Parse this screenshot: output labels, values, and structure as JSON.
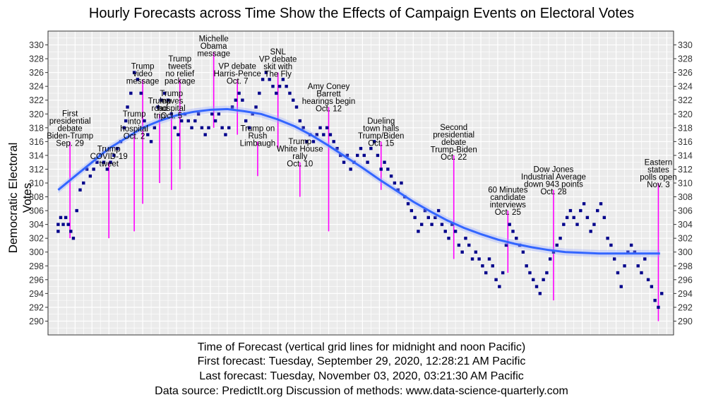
{
  "chart_data": {
    "type": "scatter",
    "title": "Hourly Forecasts across Time Show the Effects of Campaign Events on Electoral Votes",
    "ylabel": "Democratic Electoral Votes",
    "xlabel_lines": [
      "Time of Forecast (vertical grid lines for midnight and noon Pacific)",
      "First forecast: Tuesday, September 29, 2020, 12:28:21 AM Pacific",
      "Last forecast: Tuesday, November 03, 2020, 03:21:30 AM Pacific",
      "Data source: PredictIt.org  Discussion of methods: www.data-science-quarterly.com"
    ],
    "x_unit": "days since first forecast",
    "x_range": [
      -0.6,
      36.4
    ],
    "ylim": [
      288,
      332
    ],
    "y_ticks": [
      290,
      292,
      294,
      296,
      298,
      300,
      302,
      304,
      306,
      308,
      310,
      312,
      314,
      316,
      318,
      320,
      322,
      324,
      326,
      328,
      330
    ],
    "grid": true,
    "series_color": "#00008b",
    "smooth_color": "#3366ff",
    "event_color": "#ff00ff",
    "points": [
      [
        0.0,
        303
      ],
      [
        0.0,
        304
      ],
      [
        0.15,
        305
      ],
      [
        0.3,
        304
      ],
      [
        0.45,
        305
      ],
      [
        0.6,
        304
      ],
      [
        0.75,
        303
      ],
      [
        0.9,
        302
      ],
      [
        1.1,
        306
      ],
      [
        1.3,
        309
      ],
      [
        1.5,
        310
      ],
      [
        1.7,
        312
      ],
      [
        1.9,
        311
      ],
      [
        2.1,
        312
      ],
      [
        2.3,
        313
      ],
      [
        2.5,
        314
      ],
      [
        2.7,
        313
      ],
      [
        2.9,
        312
      ],
      [
        3.1,
        313
      ],
      [
        3.3,
        314
      ],
      [
        3.5,
        315
      ],
      [
        3.7,
        316
      ],
      [
        3.9,
        318
      ],
      [
        4.0,
        319
      ],
      [
        4.1,
        321
      ],
      [
        4.3,
        323
      ],
      [
        4.5,
        326
      ],
      [
        4.7,
        325
      ],
      [
        4.9,
        323
      ],
      [
        5.1,
        319
      ],
      [
        5.3,
        317
      ],
      [
        5.5,
        316
      ],
      [
        5.7,
        318
      ],
      [
        5.9,
        321
      ],
      [
        6.1,
        322
      ],
      [
        6.3,
        323
      ],
      [
        6.5,
        322
      ],
      [
        6.7,
        320
      ],
      [
        6.9,
        318
      ],
      [
        7.1,
        317
      ],
      [
        7.3,
        319
      ],
      [
        7.5,
        320
      ],
      [
        7.7,
        319
      ],
      [
        7.9,
        318
      ],
      [
        8.1,
        319
      ],
      [
        8.3,
        320
      ],
      [
        8.5,
        318
      ],
      [
        8.7,
        317
      ],
      [
        8.9,
        318
      ],
      [
        9.1,
        320
      ],
      [
        9.3,
        319
      ],
      [
        9.5,
        320
      ],
      [
        9.7,
        318
      ],
      [
        9.9,
        317
      ],
      [
        10.1,
        318
      ],
      [
        10.3,
        321
      ],
      [
        10.5,
        322
      ],
      [
        10.7,
        323
      ],
      [
        10.9,
        322
      ],
      [
        11.1,
        319
      ],
      [
        11.3,
        318
      ],
      [
        11.5,
        320
      ],
      [
        11.7,
        321
      ],
      [
        11.9,
        323
      ],
      [
        12.1,
        325
      ],
      [
        12.3,
        326
      ],
      [
        12.5,
        325
      ],
      [
        12.7,
        324
      ],
      [
        12.9,
        323
      ],
      [
        13.1,
        324
      ],
      [
        13.3,
        325
      ],
      [
        13.5,
        324
      ],
      [
        13.7,
        323
      ],
      [
        13.9,
        322
      ],
      [
        14.1,
        321
      ],
      [
        14.3,
        319
      ],
      [
        14.5,
        318
      ],
      [
        14.7,
        316
      ],
      [
        14.9,
        317
      ],
      [
        15.1,
        316
      ],
      [
        15.3,
        317
      ],
      [
        15.5,
        318
      ],
      [
        15.7,
        317
      ],
      [
        15.9,
        318
      ],
      [
        16.1,
        317
      ],
      [
        16.3,
        316
      ],
      [
        16.5,
        315
      ],
      [
        16.7,
        314
      ],
      [
        16.9,
        313
      ],
      [
        17.1,
        314
      ],
      [
        17.3,
        312
      ],
      [
        17.5,
        313
      ],
      [
        17.7,
        314
      ],
      [
        17.9,
        315
      ],
      [
        18.1,
        314
      ],
      [
        18.3,
        313
      ],
      [
        18.5,
        315
      ],
      [
        18.7,
        316
      ],
      [
        18.9,
        314
      ],
      [
        19.1,
        312
      ],
      [
        19.3,
        313
      ],
      [
        19.5,
        312
      ],
      [
        19.7,
        311
      ],
      [
        19.9,
        310
      ],
      [
        20.1,
        309
      ],
      [
        20.3,
        310
      ],
      [
        20.5,
        308
      ],
      [
        20.7,
        307
      ],
      [
        20.9,
        306
      ],
      [
        21.1,
        305
      ],
      [
        21.3,
        303
      ],
      [
        21.5,
        304
      ],
      [
        21.7,
        306
      ],
      [
        21.9,
        305
      ],
      [
        22.1,
        304
      ],
      [
        22.3,
        305
      ],
      [
        22.5,
        306
      ],
      [
        22.7,
        304
      ],
      [
        22.9,
        303
      ],
      [
        23.1,
        302
      ],
      [
        23.3,
        304
      ],
      [
        23.5,
        303
      ],
      [
        23.7,
        301
      ],
      [
        23.9,
        300
      ],
      [
        24.1,
        302
      ],
      [
        24.3,
        301
      ],
      [
        24.5,
        299
      ],
      [
        24.7,
        300
      ],
      [
        24.9,
        299
      ],
      [
        25.1,
        298
      ],
      [
        25.3,
        297
      ],
      [
        25.5,
        299
      ],
      [
        25.7,
        298
      ],
      [
        25.9,
        296
      ],
      [
        26.1,
        295
      ],
      [
        26.3,
        297
      ],
      [
        26.5,
        301
      ],
      [
        26.7,
        304
      ],
      [
        26.9,
        303
      ],
      [
        27.1,
        302
      ],
      [
        27.3,
        301
      ],
      [
        27.5,
        300
      ],
      [
        27.7,
        298
      ],
      [
        27.9,
        297
      ],
      [
        28.1,
        296
      ],
      [
        28.3,
        295
      ],
      [
        28.5,
        294
      ],
      [
        28.7,
        296
      ],
      [
        28.9,
        297
      ],
      [
        29.1,
        299
      ],
      [
        29.3,
        300
      ],
      [
        29.5,
        301
      ],
      [
        29.7,
        302
      ],
      [
        29.9,
        304
      ],
      [
        30.1,
        305
      ],
      [
        30.3,
        306
      ],
      [
        30.5,
        305
      ],
      [
        30.7,
        304
      ],
      [
        30.9,
        306
      ],
      [
        31.1,
        307
      ],
      [
        31.3,
        305
      ],
      [
        31.5,
        303
      ],
      [
        31.7,
        304
      ],
      [
        31.9,
        306
      ],
      [
        32.1,
        307
      ],
      [
        32.3,
        305
      ],
      [
        32.5,
        302
      ],
      [
        32.7,
        301
      ],
      [
        32.9,
        299
      ],
      [
        33.1,
        297
      ],
      [
        33.3,
        295
      ],
      [
        33.5,
        298
      ],
      [
        33.7,
        300
      ],
      [
        33.9,
        301
      ],
      [
        34.1,
        300
      ],
      [
        34.3,
        298
      ],
      [
        34.5,
        297
      ],
      [
        34.7,
        299
      ],
      [
        34.9,
        296
      ],
      [
        35.1,
        295
      ],
      [
        35.3,
        293
      ],
      [
        35.5,
        292
      ],
      [
        35.7,
        294
      ]
    ],
    "smooth": [
      [
        0,
        309
      ],
      [
        1,
        311
      ],
      [
        2,
        313
      ],
      [
        3,
        315
      ],
      [
        4,
        316.5
      ],
      [
        5,
        318
      ],
      [
        6,
        319
      ],
      [
        7,
        319.8
      ],
      [
        8,
        320.3
      ],
      [
        9,
        320.6
      ],
      [
        10,
        320.7
      ],
      [
        11,
        320.4
      ],
      [
        12,
        320.0
      ],
      [
        13,
        319.2
      ],
      [
        14,
        318.2
      ],
      [
        15,
        316.9
      ],
      [
        16,
        315.4
      ],
      [
        17,
        313.8
      ],
      [
        18,
        312.2
      ],
      [
        19,
        310.5
      ],
      [
        20,
        308.9
      ],
      [
        21,
        307.3
      ],
      [
        22,
        305.9
      ],
      [
        23,
        304.6
      ],
      [
        24,
        303.5
      ],
      [
        25,
        302.6
      ],
      [
        26,
        301.8
      ],
      [
        27,
        301.2
      ],
      [
        28,
        300.7
      ],
      [
        29,
        300.3
      ],
      [
        30,
        300.0
      ],
      [
        31,
        299.9
      ],
      [
        32,
        299.8
      ],
      [
        33,
        299.8
      ],
      [
        34,
        299.8
      ],
      [
        35,
        299.8
      ],
      [
        35.6,
        299.8
      ]
    ],
    "annotations": [
      {
        "x": 0.7,
        "y_top": 316,
        "y_bottom": 302,
        "label": [
          "First",
          "presidential",
          "debate",
          "Biden-Trump",
          "Sep. 29"
        ]
      },
      {
        "x": 3.0,
        "y_top": 313,
        "y_bottom": 302,
        "label": [
          "Trump",
          "COVID-19",
          "tweet"
        ]
      },
      {
        "x": 4.5,
        "y_top": 317,
        "y_bottom": 303,
        "label": [
          "Trump",
          "into",
          "hospital",
          "Oct. 2"
        ]
      },
      {
        "x": 5.0,
        "y_top": 325,
        "y_bottom": 307,
        "label": [
          "Trump",
          "video",
          "message"
        ]
      },
      {
        "x": 6.0,
        "y_top": 320,
        "y_bottom": 310,
        "label": [
          "Trump",
          "road",
          "trip"
        ]
      },
      {
        "x": 6.7,
        "y_top": 320,
        "y_bottom": 309,
        "label": [
          "Trump",
          "leaves",
          "hospital",
          "Oct. 5"
        ]
      },
      {
        "x": 7.2,
        "y_top": 325,
        "y_bottom": 312,
        "label": [
          "Trump",
          "tweets",
          "no relief",
          "package"
        ]
      },
      {
        "x": 9.2,
        "y_top": 329,
        "y_bottom": 318,
        "label": [
          "Michelle",
          "Obama",
          "message"
        ]
      },
      {
        "x": 10.6,
        "y_top": 325,
        "y_bottom": 317,
        "label": [
          "VP debate",
          "Harris-Pence",
          "Oct. 7"
        ]
      },
      {
        "x": 13.0,
        "y_top": 326,
        "y_bottom": 315,
        "label": [
          "SNL",
          "VP debate",
          "skit with",
          "The Fly"
        ]
      },
      {
        "x": 11.8,
        "y_top": 316,
        "y_bottom": 311,
        "label": [
          "Trump on",
          "Rush",
          "Limbaugh"
        ]
      },
      {
        "x": 14.3,
        "y_top": 313,
        "y_bottom": 308,
        "label": [
          "Trump",
          "White House",
          "rally",
          "Oct. 10"
        ]
      },
      {
        "x": 16.0,
        "y_top": 321,
        "y_bottom": 303,
        "label": [
          "Amy Coney",
          "Barrett",
          "hearings begin",
          "Oct. 12"
        ]
      },
      {
        "x": 19.1,
        "y_top": 316,
        "y_bottom": 309,
        "label": [
          "Dueling",
          "town halls",
          "Trump/Biden",
          "Oct. 15"
        ]
      },
      {
        "x": 23.4,
        "y_top": 314,
        "y_bottom": 299,
        "label": [
          "Second",
          "presidential",
          "debate",
          "Trump-Biden",
          "Oct. 22"
        ]
      },
      {
        "x": 26.6,
        "y_top": 306,
        "y_bottom": 297,
        "label": [
          "60 Minutes",
          "candidate",
          "interviews",
          "Oct. 25"
        ]
      },
      {
        "x": 29.3,
        "y_top": 309,
        "y_bottom": 293,
        "label": [
          "Dow Jones",
          "Industrial Average",
          "down 943 points",
          "Oct. 28"
        ]
      },
      {
        "x": 35.5,
        "y_top": 310,
        "y_bottom": 290,
        "label": [
          "Eastern",
          "states",
          "polls open",
          "Nov. 3"
        ]
      }
    ]
  }
}
